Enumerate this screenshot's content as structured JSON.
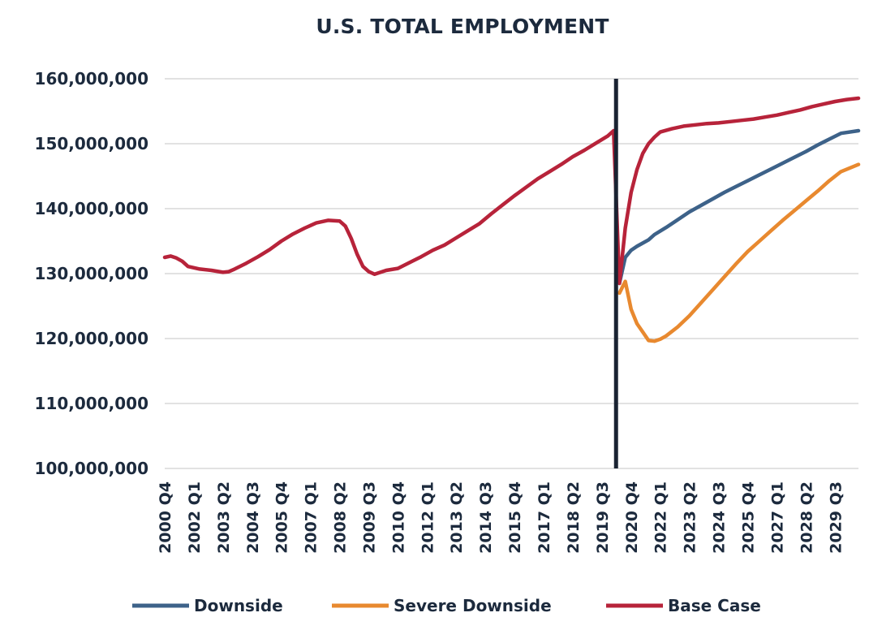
{
  "chart_data": {
    "type": "line",
    "title": "U.S. TOTAL EMPLOYMENT",
    "xlabel": "",
    "ylabel": "",
    "ylim": [
      100000000,
      160000000
    ],
    "yticks": [
      100000000,
      110000000,
      120000000,
      130000000,
      140000000,
      150000000,
      160000000
    ],
    "ytick_labels": [
      "100,000,000",
      "110,000,000",
      "120,000,000",
      "130,000,000",
      "140,000,000",
      "150,000,000",
      "160,000,000"
    ],
    "x_range": [
      "2000 Q4",
      "2030 Q3"
    ],
    "xtick_labels": [
      "2000 Q4",
      "2002 Q1",
      "2003 Q2",
      "2004 Q3",
      "2005 Q4",
      "2007 Q1",
      "2008 Q2",
      "2009 Q3",
      "2010 Q4",
      "2012 Q1",
      "2013 Q2",
      "2014 Q3",
      "2015 Q4",
      "2017 Q1",
      "2018 Q2",
      "2019 Q3",
      "2020 Q4",
      "2022 Q1",
      "2023 Q2",
      "2024 Q3",
      "2025 Q4",
      "2027 Q1",
      "2028 Q2",
      "2029 Q3"
    ],
    "vertical_marker": "2020 Q1",
    "grid": true,
    "legend_position": "bottom",
    "colors": {
      "downside": "#3d6289",
      "severe": "#e8892f",
      "base": "#b7233a",
      "marker": "#1a2332",
      "text": "#1c2a3d"
    },
    "series": [
      {
        "name": "Base Case",
        "color": "#b7233a",
        "points": [
          [
            "2000 Q4",
            132500000
          ],
          [
            "2001 Q1",
            132700000
          ],
          [
            "2001 Q2",
            132400000
          ],
          [
            "2001 Q3",
            131900000
          ],
          [
            "2001 Q4",
            131100000
          ],
          [
            "2002 Q2",
            130700000
          ],
          [
            "2002 Q4",
            130500000
          ],
          [
            "2003 Q2",
            130200000
          ],
          [
            "2003 Q3",
            130300000
          ],
          [
            "2003 Q4",
            130700000
          ],
          [
            "2004 Q2",
            131600000
          ],
          [
            "2004 Q4",
            132600000
          ],
          [
            "2005 Q2",
            133700000
          ],
          [
            "2005 Q4",
            135000000
          ],
          [
            "2006 Q2",
            136100000
          ],
          [
            "2006 Q4",
            137000000
          ],
          [
            "2007 Q2",
            137800000
          ],
          [
            "2007 Q4",
            138200000
          ],
          [
            "2008 Q2",
            138100000
          ],
          [
            "2008 Q3",
            137300000
          ],
          [
            "2008 Q4",
            135400000
          ],
          [
            "2009 Q1",
            133000000
          ],
          [
            "2009 Q2",
            131100000
          ],
          [
            "2009 Q3",
            130300000
          ],
          [
            "2009 Q4",
            129900000
          ],
          [
            "2010 Q2",
            130500000
          ],
          [
            "2010 Q4",
            130800000
          ],
          [
            "2011 Q2",
            131700000
          ],
          [
            "2011 Q4",
            132600000
          ],
          [
            "2012 Q2",
            133600000
          ],
          [
            "2012 Q4",
            134400000
          ],
          [
            "2013 Q2",
            135500000
          ],
          [
            "2013 Q4",
            136600000
          ],
          [
            "2014 Q2",
            137700000
          ],
          [
            "2014 Q4",
            139200000
          ],
          [
            "2015 Q2",
            140600000
          ],
          [
            "2015 Q4",
            142000000
          ],
          [
            "2016 Q2",
            143300000
          ],
          [
            "2016 Q4",
            144600000
          ],
          [
            "2017 Q2",
            145700000
          ],
          [
            "2017 Q4",
            146800000
          ],
          [
            "2018 Q2",
            148000000
          ],
          [
            "2018 Q4",
            149000000
          ],
          [
            "2019 Q2",
            150100000
          ],
          [
            "2019 Q4",
            151200000
          ],
          [
            "2020 Q1",
            152000000
          ],
          [
            "2020 Q2",
            128500000
          ],
          [
            "2020 Q3",
            137000000
          ],
          [
            "2020 Q4",
            142500000
          ],
          [
            "2021 Q1",
            146000000
          ],
          [
            "2021 Q2",
            148500000
          ],
          [
            "2021 Q3",
            150000000
          ],
          [
            "2021 Q4",
            151000000
          ],
          [
            "2022 Q1",
            151800000
          ],
          [
            "2022 Q3",
            152300000
          ],
          [
            "2023 Q1",
            152700000
          ],
          [
            "2023 Q3",
            152900000
          ],
          [
            "2024 Q1",
            153100000
          ],
          [
            "2024 Q3",
            153200000
          ],
          [
            "2025 Q1",
            153400000
          ],
          [
            "2025 Q3",
            153600000
          ],
          [
            "2026 Q1",
            153800000
          ],
          [
            "2026 Q3",
            154100000
          ],
          [
            "2027 Q1",
            154400000
          ],
          [
            "2027 Q3",
            154800000
          ],
          [
            "2028 Q1",
            155200000
          ],
          [
            "2028 Q3",
            155700000
          ],
          [
            "2029 Q1",
            156100000
          ],
          [
            "2029 Q3",
            156500000
          ],
          [
            "2030 Q1",
            156800000
          ],
          [
            "2030 Q3",
            157000000
          ]
        ]
      },
      {
        "name": "Downside",
        "color": "#3d6289",
        "points": [
          [
            "2020 Q2",
            128500000
          ],
          [
            "2020 Q3",
            132500000
          ],
          [
            "2020 Q4",
            133600000
          ],
          [
            "2021 Q1",
            134200000
          ],
          [
            "2021 Q2",
            134700000
          ],
          [
            "2021 Q3",
            135200000
          ],
          [
            "2021 Q4",
            136000000
          ],
          [
            "2022 Q2",
            137100000
          ],
          [
            "2022 Q4",
            138300000
          ],
          [
            "2023 Q2",
            139500000
          ],
          [
            "2023 Q4",
            140500000
          ],
          [
            "2024 Q2",
            141500000
          ],
          [
            "2024 Q4",
            142500000
          ],
          [
            "2025 Q2",
            143400000
          ],
          [
            "2025 Q4",
            144300000
          ],
          [
            "2026 Q2",
            145200000
          ],
          [
            "2026 Q4",
            146100000
          ],
          [
            "2027 Q2",
            147000000
          ],
          [
            "2027 Q4",
            147900000
          ],
          [
            "2028 Q2",
            148800000
          ],
          [
            "2028 Q4",
            149800000
          ],
          [
            "2029 Q2",
            150700000
          ],
          [
            "2029 Q4",
            151600000
          ],
          [
            "2030 Q3",
            152000000
          ]
        ]
      },
      {
        "name": "Severe Downside",
        "color": "#e8892f",
        "points": [
          [
            "2020 Q2",
            127000000
          ],
          [
            "2020 Q3",
            128800000
          ],
          [
            "2020 Q4",
            124500000
          ],
          [
            "2021 Q1",
            122300000
          ],
          [
            "2021 Q2",
            121000000
          ],
          [
            "2021 Q3",
            119700000
          ],
          [
            "2021 Q4",
            119600000
          ],
          [
            "2022 Q1",
            119900000
          ],
          [
            "2022 Q2",
            120400000
          ],
          [
            "2022 Q4",
            121800000
          ],
          [
            "2023 Q2",
            123500000
          ],
          [
            "2023 Q4",
            125500000
          ],
          [
            "2024 Q2",
            127500000
          ],
          [
            "2024 Q4",
            129500000
          ],
          [
            "2025 Q2",
            131500000
          ],
          [
            "2025 Q4",
            133400000
          ],
          [
            "2026 Q2",
            135000000
          ],
          [
            "2026 Q4",
            136600000
          ],
          [
            "2027 Q2",
            138200000
          ],
          [
            "2027 Q4",
            139700000
          ],
          [
            "2028 Q2",
            141200000
          ],
          [
            "2028 Q4",
            142700000
          ],
          [
            "2029 Q2",
            144300000
          ],
          [
            "2029 Q4",
            145700000
          ],
          [
            "2030 Q3",
            146800000
          ]
        ]
      }
    ],
    "legend": [
      {
        "label": "Downside",
        "color": "#3d6289"
      },
      {
        "label": "Severe Downside",
        "color": "#e8892f"
      },
      {
        "label": "Base Case",
        "color": "#b7233a"
      }
    ]
  }
}
